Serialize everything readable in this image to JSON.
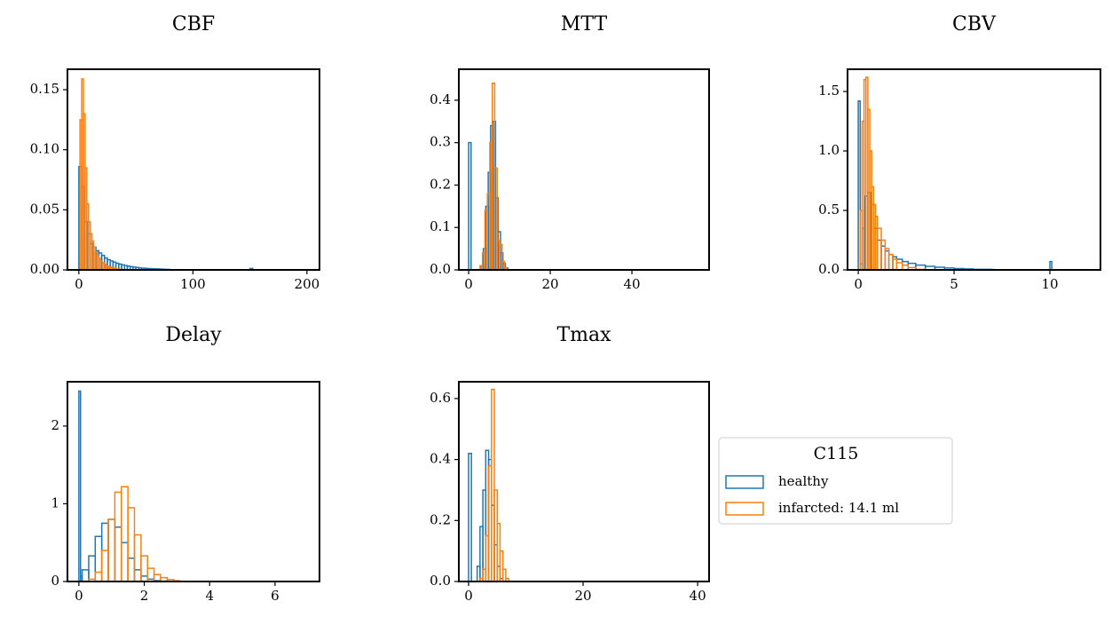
{
  "chart_data": [
    {
      "type": "histogram",
      "title": "CBF",
      "xlim": [
        -10,
        211
      ],
      "ylim": [
        0,
        0.167
      ],
      "xticks": [
        0,
        100,
        200
      ],
      "yticks": [
        {
          "value": 0,
          "label": "0.00"
        },
        {
          "value": 0.05,
          "label": "0.05"
        },
        {
          "value": 0.1,
          "label": "0.10"
        },
        {
          "value": 0.15,
          "label": "0.15"
        }
      ],
      "series": [
        {
          "name": "healthy",
          "color": "#1f77b4",
          "bins": [
            0,
            2.5,
            5,
            7.5,
            10,
            12.5,
            15,
            17.5,
            20,
            22.5,
            25,
            27.5,
            30,
            32.5,
            35,
            37.5,
            40,
            42.5,
            45,
            47.5,
            50,
            52.5,
            55,
            57.5,
            60,
            62.5,
            65,
            67.5,
            70,
            72.5,
            75,
            77.5,
            80,
            150,
            152.5
          ],
          "values": [
            0.086,
            0.069,
            0.04,
            0.03,
            0.022,
            0.019,
            0.016,
            0.014,
            0.012,
            0.01,
            0.0085,
            0.0075,
            0.0065,
            0.0055,
            0.0048,
            0.0042,
            0.0036,
            0.0031,
            0.0027,
            0.0023,
            0.002,
            0.0017,
            0.0015,
            0.0013,
            0.0011,
            0.001,
            0.0009,
            0.0008,
            0.0007,
            0.0006,
            0.0005,
            0.0004,
            0,
            0.0012
          ]
        },
        {
          "name": "infarcted: 14.1 ml",
          "color": "#ff7f0e",
          "bins": [
            1,
            2.5,
            4,
            5.5,
            7,
            8.5,
            10,
            11.5,
            13,
            14.5,
            16,
            17.5,
            19,
            20.5,
            22,
            23.5,
            25,
            26.5,
            28,
            29.5,
            31,
            32.5,
            34,
            35.5,
            37,
            38.5,
            40
          ],
          "values": [
            0.125,
            0.159,
            0.13,
            0.085,
            0.055,
            0.04,
            0.03,
            0.024,
            0.019,
            0.015,
            0.012,
            0.0095,
            0.0075,
            0.006,
            0.0048,
            0.0038,
            0.003,
            0.0024,
            0.0019,
            0.0015,
            0.0012,
            0.0009,
            0.0007,
            0.0005,
            0.0003,
            0.0002
          ]
        }
      ]
    },
    {
      "type": "histogram",
      "title": "MTT",
      "xlim": [
        -2.4,
        58.9
      ],
      "ylim": [
        0,
        0.473
      ],
      "xticks": [
        0,
        20,
        40
      ],
      "yticks": [
        {
          "value": 0,
          "label": "0.0"
        },
        0.1,
        0.2,
        0.3,
        0.4
      ],
      "series": [
        {
          "name": "healthy",
          "color": "#1f77b4",
          "bins": [
            0,
            0.6,
            3,
            3.6,
            4.2,
            4.8,
            5.4,
            6,
            6.6,
            7.2,
            7.8,
            8.4,
            9,
            9.6
          ],
          "values": [
            0.3,
            0,
            0.01,
            0.05,
            0.15,
            0.23,
            0.34,
            0.35,
            0.17,
            0.09,
            0.04,
            0.015,
            0.005
          ]
        },
        {
          "name": "infarcted: 14.1 ml",
          "color": "#ff7f0e",
          "bins": [
            2.8,
            3.4,
            4,
            4.6,
            5.2,
            5.8,
            6.4,
            7,
            7.6,
            8.2,
            8.8,
            9.4
          ],
          "values": [
            0.01,
            0.04,
            0.14,
            0.18,
            0.3,
            0.44,
            0.24,
            0.07,
            0.06,
            0.02,
            0.005
          ]
        }
      ]
    },
    {
      "type": "histogram",
      "title": "CBV",
      "xlim": [
        -0.56,
        12.64
      ],
      "ylim": [
        0,
        1.687
      ],
      "xticks": [
        0,
        5,
        10
      ],
      "yticks": [
        {
          "value": 0,
          "label": "0.0"
        },
        0.5,
        {
          "value": 1,
          "label": "1.0"
        },
        1.5
      ],
      "series": [
        {
          "name": "healthy",
          "color": "#1f77b4",
          "bins": [
            0,
            0.1,
            0.2,
            0.35,
            0.5,
            0.65,
            0.8,
            1.0,
            1.2,
            1.4,
            1.6,
            1.8,
            2.0,
            2.3,
            2.6,
            3.0,
            3.5,
            4.0,
            4.5,
            5,
            5.5,
            6,
            7,
            10,
            10.1
          ],
          "values": [
            1.42,
            0.05,
            0.35,
            0.62,
            0.65,
            0.55,
            0.35,
            0.25,
            0.2,
            0.16,
            0.13,
            0.11,
            0.09,
            0.07,
            0.055,
            0.04,
            0.03,
            0.022,
            0.016,
            0.011,
            0.008,
            0.005,
            0,
            0.07
          ]
        },
        {
          "name": "infarcted: 14.1 ml",
          "color": "#ff7f0e",
          "bins": [
            0.1,
            0.2,
            0.3,
            0.4,
            0.5,
            0.6,
            0.7,
            0.8,
            0.9,
            1.0,
            1.2,
            1.4,
            1.6,
            1.8,
            2.0,
            2.3,
            2.6,
            3.0,
            3.5
          ],
          "values": [
            0.5,
            1.25,
            1.6,
            1.62,
            1.35,
            1.0,
            0.7,
            0.55,
            0.45,
            0.35,
            0.25,
            0.18,
            0.13,
            0.09,
            0.06,
            0.04,
            0.02,
            0.005
          ]
        }
      ]
    },
    {
      "type": "histogram",
      "title": "Delay",
      "xlim": [
        -0.35,
        7.36
      ],
      "ylim": [
        0,
        2.57
      ],
      "xticks": [
        0,
        2,
        4,
        6
      ],
      "yticks": [
        0,
        1,
        2
      ],
      "series": [
        {
          "name": "healthy",
          "color": "#1f77b4",
          "bins": [
            0,
            0.05,
            0.1,
            0.3,
            0.5,
            0.7,
            0.9,
            1.1,
            1.3,
            1.5,
            1.7,
            1.9,
            2.1,
            2.3,
            2.5,
            2.7
          ],
          "values": [
            2.45,
            0.07,
            0.15,
            0.33,
            0.58,
            0.75,
            0.8,
            0.7,
            0.5,
            0.3,
            0.15,
            0.07,
            0.03,
            0.012,
            0.004
          ]
        },
        {
          "name": "infarcted: 14.1 ml",
          "color": "#ff7f0e",
          "bins": [
            0.3,
            0.5,
            0.7,
            0.9,
            1.1,
            1.3,
            1.5,
            1.7,
            1.9,
            2.1,
            2.3,
            2.5,
            2.7,
            2.9,
            3.1
          ],
          "values": [
            0.03,
            0.12,
            0.4,
            0.8,
            1.15,
            1.22,
            0.95,
            0.6,
            0.33,
            0.17,
            0.09,
            0.05,
            0.025,
            0.01
          ]
        }
      ]
    },
    {
      "type": "histogram",
      "title": "Tmax",
      "legend_title": "C115",
      "legend": "right",
      "xlim": [
        -1.7,
        42.0
      ],
      "ylim": [
        0,
        0.655
      ],
      "xticks": [
        0,
        20,
        40
      ],
      "yticks": [
        {
          "value": 0,
          "label": "0.0"
        },
        0.2,
        0.4,
        0.6
      ],
      "series": [
        {
          "name": "healthy",
          "color": "#1f77b4",
          "bins": [
            0,
            0.5,
            1.5,
            2,
            2.5,
            3,
            3.5,
            4,
            4.5,
            5,
            5.5,
            6
          ],
          "values": [
            0.42,
            0,
            0.05,
            0.18,
            0.3,
            0.43,
            0.4,
            0.25,
            0.12,
            0.05,
            0.01
          ]
        },
        {
          "name": "infarcted: 14.1 ml",
          "color": "#ff7f0e",
          "bins": [
            2,
            2.5,
            3,
            3.5,
            4,
            4.5,
            5,
            5.5,
            6,
            6.5,
            7
          ],
          "values": [
            0.01,
            0.04,
            0.15,
            0.38,
            0.63,
            0.3,
            0.19,
            0.1,
            0.04,
            0.01
          ]
        }
      ]
    }
  ]
}
